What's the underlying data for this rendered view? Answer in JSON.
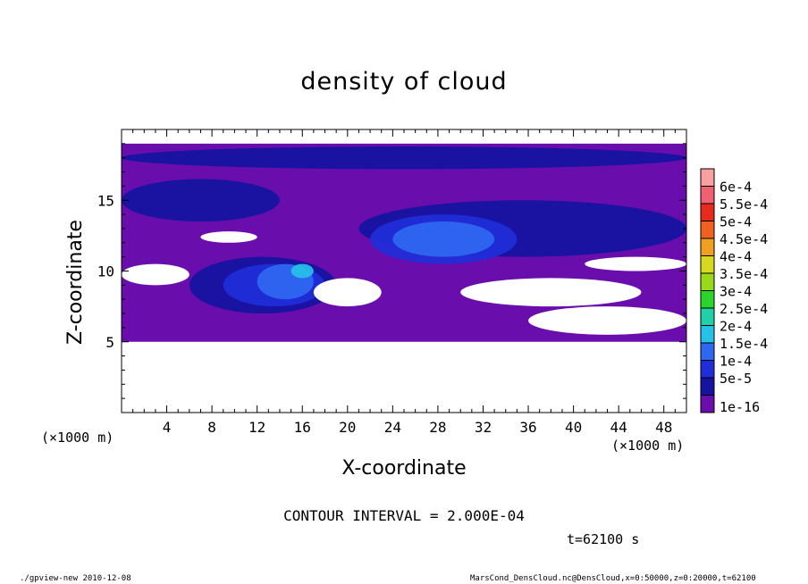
{
  "title": "density of cloud",
  "footer": {
    "left": "./gpview-new  2010-12-08",
    "right": "MarsCond_DensCloud.nc@DensCloud,x=0:50000,z=0:20000,t=62100"
  },
  "annotations": {
    "contour_interval": "CONTOUR INTERVAL = 2.000E-04",
    "time": "t=62100 s",
    "x_unit": "(×1000 m)",
    "x_unit_right": "(×1000 m)"
  },
  "colors": {
    "background_layer": "#6a0dad",
    "levels": [
      "#6a0dad",
      "#1414a0",
      "#1f2ed8",
      "#2f68f0",
      "#27c0e8",
      "#1fd0a8",
      "#2ad42a",
      "#9ad81a",
      "#d8d820",
      "#f0a020",
      "#f06020",
      "#e82a1c",
      "#f06070",
      "#f8a0a0"
    ]
  },
  "chart_data": {
    "type": "heatmap",
    "title": "density of cloud",
    "xlabel": "X-coordinate",
    "ylabel": "Z-coordinate",
    "xlim": [
      0,
      50
    ],
    "ylim": [
      0,
      20
    ],
    "x_ticks": [
      4,
      8,
      12,
      16,
      20,
      24,
      28,
      32,
      36,
      40,
      44,
      48
    ],
    "y_ticks": [
      5,
      10,
      15
    ],
    "colorbar": {
      "levels": [
        "1e-16",
        "5e-5",
        "1e-4",
        "1.5e-4",
        "2e-4",
        "2.5e-4",
        "3e-4",
        "3.5e-4",
        "4e-4",
        "4.5e-4",
        "5e-4",
        "5.5e-4",
        "6e-4"
      ]
    },
    "cloud_layer": {
      "z_range": [
        5,
        19
      ],
      "background_value": "1e-16"
    },
    "features": [
      {
        "x": [
          0,
          50
        ],
        "z": [
          17.2,
          18.8
        ],
        "level": 1,
        "value": "5e-5"
      },
      {
        "x": [
          21,
          50
        ],
        "z": [
          11,
          15
        ],
        "level": 1,
        "value": "5e-5"
      },
      {
        "x": [
          6,
          19
        ],
        "z": [
          7,
          11
        ],
        "level": 1,
        "value": "5e-5"
      },
      {
        "x": [
          0,
          14
        ],
        "z": [
          13.5,
          16.5
        ],
        "level": 1,
        "value": "5e-5"
      },
      {
        "x": [
          22,
          35
        ],
        "z": [
          10.5,
          14
        ],
        "level": 2,
        "value": "1e-4"
      },
      {
        "x": [
          9,
          18
        ],
        "z": [
          7.5,
          10.5
        ],
        "level": 2,
        "value": "1e-4"
      },
      {
        "x": [
          24,
          33
        ],
        "z": [
          11,
          13.5
        ],
        "level": 3,
        "value": "1.5e-4"
      },
      {
        "x": [
          12,
          17
        ],
        "z": [
          8,
          10.5
        ],
        "level": 3,
        "value": "1.5e-4"
      },
      {
        "x": [
          15,
          17
        ],
        "z": [
          9.5,
          10.5
        ],
        "level": 4,
        "value": "2e-4"
      }
    ],
    "gaps": [
      {
        "x": [
          0,
          6
        ],
        "z": [
          9,
          10.5
        ]
      },
      {
        "x": [
          17,
          23
        ],
        "z": [
          7.5,
          9.5
        ]
      },
      {
        "x": [
          30,
          46
        ],
        "z": [
          7.5,
          9.5
        ]
      },
      {
        "x": [
          36,
          50
        ],
        "z": [
          5.5,
          7.5
        ]
      },
      {
        "x": [
          7,
          12
        ],
        "z": [
          12,
          12.8
        ]
      },
      {
        "x": [
          41,
          50
        ],
        "z": [
          10,
          11
        ]
      }
    ]
  }
}
